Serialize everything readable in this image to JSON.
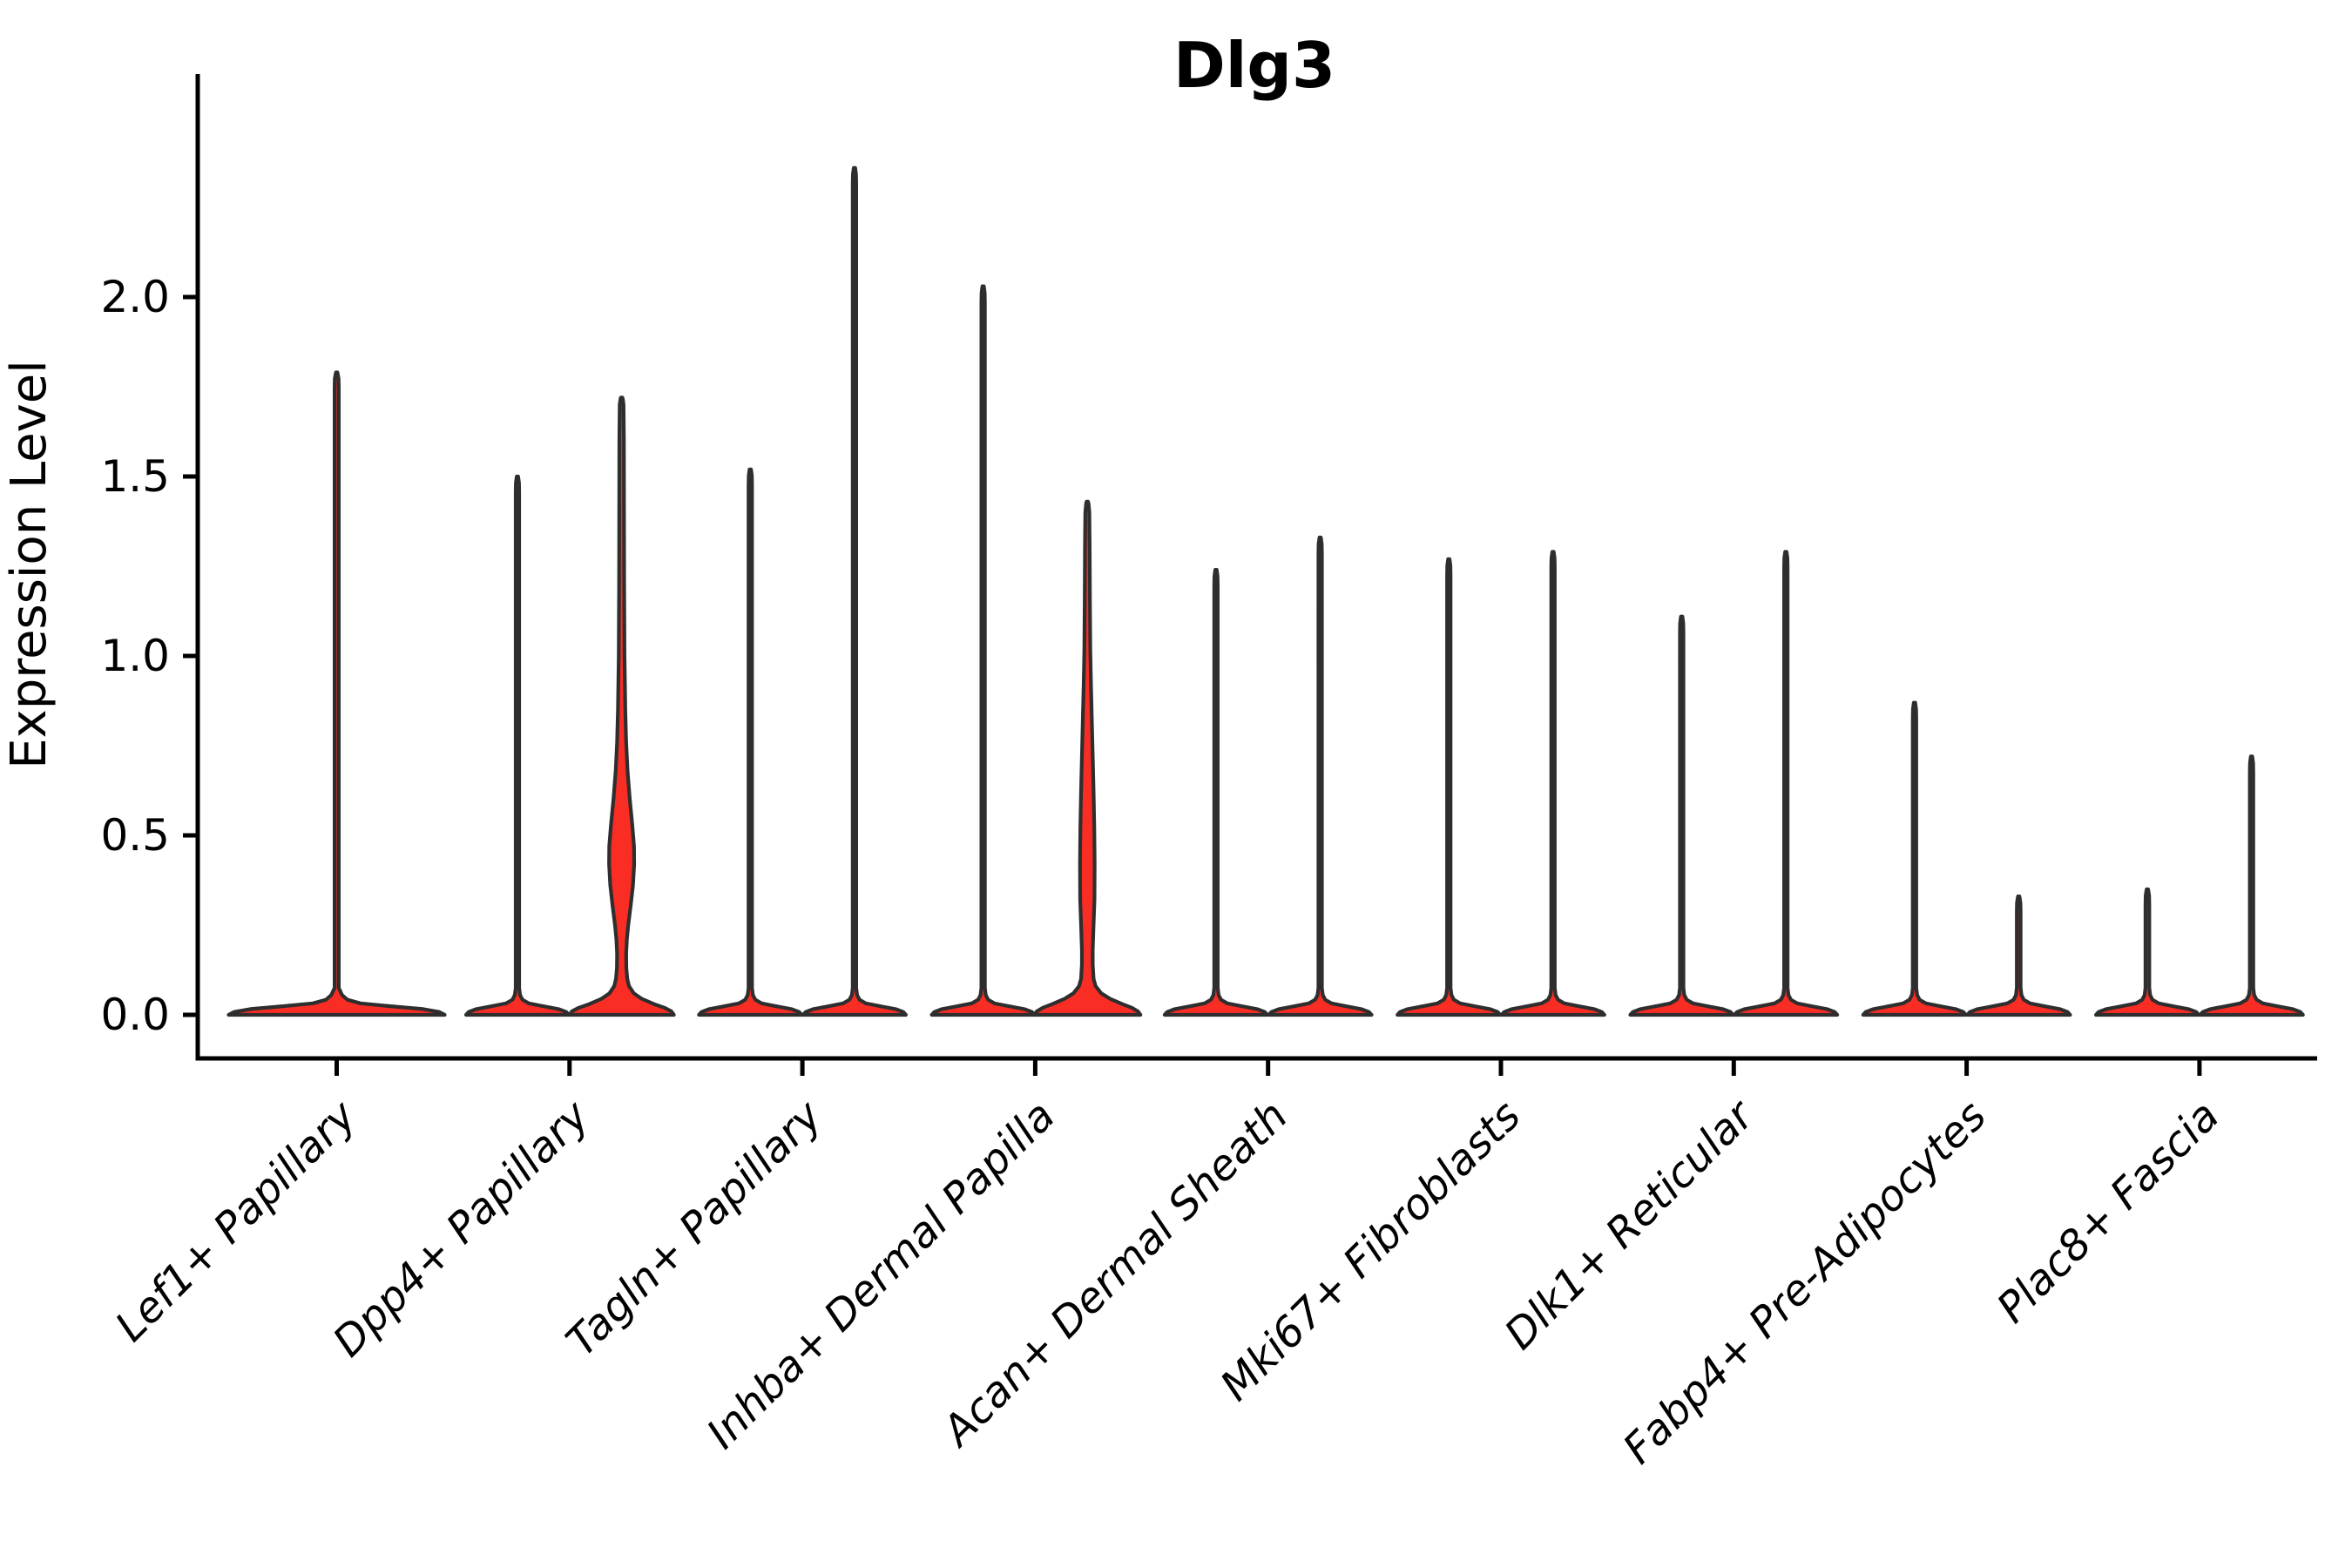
{
  "title": "Dlg3",
  "y_axis": {
    "label": "Expression Level"
  },
  "chart_data": {
    "type": "violin",
    "title": "Dlg3",
    "xlabel": "",
    "ylabel": "Expression Level",
    "ylim": [
      -0.125,
      2.625
    ],
    "yticks": [
      0.0,
      0.5,
      1.0,
      1.5,
      2.0
    ],
    "ytick_labels": [
      "0.0",
      "0.5",
      "1.0",
      "1.5",
      "2.0"
    ],
    "grid": "off",
    "legend": "none",
    "fill_color": "#fa2d25",
    "outline_color": "#2e2e2e",
    "axis_color": "#000000",
    "categories": [
      "Lef1+ Papillary",
      "Dpp4+ Papillary",
      "Tagln+ Papillary",
      "Inhba+ Dermal Papilla",
      "Acan+ Dermal Sheath",
      "Mki67+ Fibroblasts",
      "Dlk1+ Reticular",
      "Fabp4+ Pre-Adipocytes",
      "Plac8+ Fascia"
    ],
    "series": [
      {
        "category": "Lef1+ Papillary",
        "violins": [
          {
            "slot": "center",
            "max_expression": 1.79,
            "base_halfwidth": 124,
            "spike_halfwidth": 2.4,
            "kind": "thin"
          }
        ]
      },
      {
        "category": "Dpp4+ Papillary",
        "violins": [
          {
            "slot": "left",
            "max_expression": 1.5,
            "base_halfwidth": 59,
            "spike_halfwidth": 2.0,
            "kind": "thin"
          },
          {
            "slot": "right",
            "max_expression": 1.72,
            "kind": "bulge",
            "profile": [
              [
                0,
                60
              ],
              [
                0.01,
                57
              ],
              [
                0.02,
                49
              ],
              [
                0.03,
                37
              ],
              [
                0.045,
                23
              ],
              [
                0.06,
                14
              ],
              [
                0.08,
                8.5
              ],
              [
                0.1,
                6.5
              ],
              [
                0.13,
                5.4
              ],
              [
                0.17,
                5.2
              ],
              [
                0.21,
                6.0
              ],
              [
                0.25,
                7.6
              ],
              [
                0.3,
                10.2
              ],
              [
                0.36,
                13.0
              ],
              [
                0.42,
                14.4
              ],
              [
                0.47,
                14.2
              ],
              [
                0.53,
                12.2
              ],
              [
                0.6,
                9.4
              ],
              [
                0.68,
                6.8
              ],
              [
                0.76,
                5.2
              ],
              [
                0.85,
                4.2
              ],
              [
                1.0,
                3.3
              ],
              [
                1.2,
                2.9
              ],
              [
                1.45,
                2.7
              ],
              [
                1.6,
                2.6
              ],
              [
                1.7,
                2.2
              ],
              [
                1.715,
                1.4
              ],
              [
                1.72,
                0.8
              ]
            ]
          }
        ]
      },
      {
        "category": "Tagln+ Papillary",
        "violins": [
          {
            "slot": "left",
            "max_expression": 1.52,
            "base_halfwidth": 59,
            "spike_halfwidth": 2.0,
            "kind": "thin"
          },
          {
            "slot": "right",
            "max_expression": 2.36,
            "base_halfwidth": 59,
            "spike_halfwidth": 2.0,
            "kind": "thin"
          }
        ]
      },
      {
        "category": "Inhba+ Dermal Papilla",
        "violins": [
          {
            "slot": "left",
            "max_expression": 2.03,
            "base_halfwidth": 59,
            "spike_halfwidth": 2.0,
            "kind": "thin"
          },
          {
            "slot": "right",
            "max_expression": 1.43,
            "kind": "bulge",
            "profile": [
              [
                0,
                61
              ],
              [
                0.01,
                58
              ],
              [
                0.02,
                51
              ],
              [
                0.03,
                40
              ],
              [
                0.045,
                26
              ],
              [
                0.06,
                16
              ],
              [
                0.08,
                9.5
              ],
              [
                0.1,
                7.2
              ],
              [
                0.14,
                6.2
              ],
              [
                0.18,
                6.2
              ],
              [
                0.24,
                7.0
              ],
              [
                0.32,
                8.2
              ],
              [
                0.42,
                8.4
              ],
              [
                0.52,
                8.0
              ],
              [
                0.62,
                7.2
              ],
              [
                0.72,
                6.2
              ],
              [
                0.82,
                5.2
              ],
              [
                0.92,
                4.2
              ],
              [
                1.02,
                3.4
              ],
              [
                1.15,
                3.0
              ],
              [
                1.3,
                2.7
              ],
              [
                1.4,
                2.3
              ],
              [
                1.425,
                1.4
              ],
              [
                1.43,
                0.8
              ]
            ]
          }
        ]
      },
      {
        "category": "Acan+ Dermal Sheath",
        "violins": [
          {
            "slot": "left",
            "max_expression": 1.24,
            "base_halfwidth": 59,
            "spike_halfwidth": 2.0,
            "kind": "thin"
          },
          {
            "slot": "right",
            "max_expression": 1.33,
            "base_halfwidth": 59,
            "spike_halfwidth": 2.0,
            "kind": "thin"
          }
        ]
      },
      {
        "category": "Mki67+ Fibroblasts",
        "violins": [
          {
            "slot": "left",
            "max_expression": 1.27,
            "base_halfwidth": 59,
            "spike_halfwidth": 2.0,
            "kind": "thin"
          },
          {
            "slot": "right",
            "max_expression": 1.29,
            "base_halfwidth": 59,
            "spike_halfwidth": 2.0,
            "kind": "thin"
          }
        ]
      },
      {
        "category": "Dlk1+ Reticular",
        "violins": [
          {
            "slot": "left",
            "max_expression": 1.11,
            "base_halfwidth": 59,
            "spike_halfwidth": 2.0,
            "kind": "thin"
          },
          {
            "slot": "right",
            "max_expression": 1.29,
            "base_halfwidth": 59,
            "spike_halfwidth": 2.0,
            "kind": "thin"
          }
        ]
      },
      {
        "category": "Fabp4+ Pre-Adipocytes",
        "violins": [
          {
            "slot": "left",
            "max_expression": 0.87,
            "base_halfwidth": 59,
            "spike_halfwidth": 2.0,
            "kind": "thin"
          },
          {
            "slot": "right",
            "max_expression": 0.33,
            "base_halfwidth": 59,
            "spike_halfwidth": 2.2,
            "kind": "thin"
          }
        ]
      },
      {
        "category": "Plac8+ Fascia",
        "violins": [
          {
            "slot": "left",
            "max_expression": 0.35,
            "base_halfwidth": 59,
            "spike_halfwidth": 2.2,
            "kind": "thin"
          },
          {
            "slot": "right",
            "max_expression": 0.72,
            "base_halfwidth": 59,
            "spike_halfwidth": 2.0,
            "kind": "thin"
          }
        ]
      }
    ]
  }
}
